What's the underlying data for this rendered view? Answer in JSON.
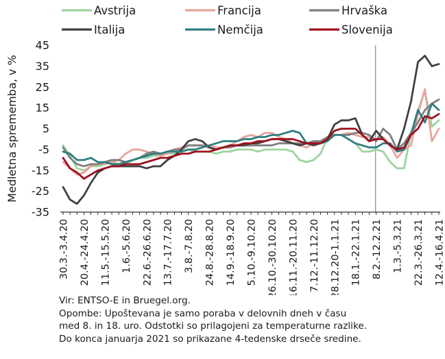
{
  "chart_data": {
    "type": "line",
    "ylabel": "Medletna sprememba, v %",
    "xlabel": "",
    "ylim": [
      -35,
      45
    ],
    "yticks": [
      -35,
      -25,
      -15,
      -5,
      5,
      15,
      25,
      35,
      45
    ],
    "grid": false,
    "legend_position": "top",
    "categories": [
      "30.3.-3.4.20",
      "6.4.-10.4.20",
      "13.4.-17.4.20",
      "20.4.-24.4.20",
      "27.4.-1.5.20",
      "4.5.-8.5.20",
      "11.5.-15.5.20",
      "18.5.-22.5.20",
      "25.5.-29.5.20",
      "1.6.-5.6.20",
      "8.6.-12.6.20",
      "15.6.-19.6.20",
      "22.6.-26.6.20",
      "29.6.-3.7.20",
      "6.7.-10.7.20",
      "13.7.-17.7.20",
      "20.7.-24.7.20",
      "27.7.-31.7.20",
      "3.8.-7.8.20",
      "10.8.-14.8.20",
      "17.8.-21.8.20",
      "24.8.-28.8.20",
      "31.8.-4.9.20",
      "7.9.-11.9.20",
      "14.9.-18.9.20",
      "21.9.-25.9.20",
      "28.9.-2.10.20",
      "5.10.-9.10.20",
      "12.10.-16.10.20",
      "19.10.-23.10.20",
      "26.10.-30.10.20",
      "2.11.-6.11.20",
      "9.11.-13.11.20",
      "16.11.-20.11.20",
      "23.11.-27.11.20",
      "30.11.-4.12.20",
      "7.12.-11.12.20",
      "14.12.-18.12.20",
      "21.12.-25.12.20",
      "28.12.20-1.1.21",
      "4.1.-8.1.21",
      "11.1.-15.1.21",
      "18.1.-22.1.21",
      "25.1.-29.1.21",
      "1.2.-5.2.21",
      "8.2.-12.2.21",
      "15.2.-19.2.21",
      "22.2.-26.2.21",
      "1.3.-5.3.21",
      "8.3.-12.3.21",
      "15.3.-19.3.21",
      "22.3.-26.3.21",
      "29.3.-2.4.21",
      "5.4.-9.4.21",
      "12.4.-16.4.21"
    ],
    "tick_labels": [
      "30.3.-3.4.20",
      "20.4.-24.4.20",
      "11.5.-15.5.20",
      "1.6.-5.6.20",
      "22.6.-26.6.20",
      "13.7.-17.7.20",
      "3.8.-7.8.20",
      "24.8.-28.8.20",
      "14.9.-18.9.20",
      "5.10.-9.10.20",
      "26.10.-30.10.20",
      "16.11.-20.11.20",
      "7.12.-11.12.20",
      "28.12.20-1.1.21",
      "18.1.-22.1.21",
      "8.2.-12.2.21",
      "1.3.-5.3.21",
      "22.3.-26.3.21",
      "12.4.-16.4.21"
    ],
    "tick_label_indices": [
      0,
      3,
      6,
      9,
      12,
      15,
      18,
      21,
      24,
      27,
      30,
      33,
      36,
      39,
      42,
      45,
      48,
      51,
      54
    ],
    "separator_label": "8.2.-12.2.21",
    "series": [
      {
        "name": "Avstrija",
        "color": "#9dd49d",
        "values": [
          -3,
          -8,
          -14,
          -15,
          -13,
          -13,
          -12,
          -11,
          -12,
          -12,
          -10,
          -9,
          -9,
          -8,
          -8,
          -7,
          -7,
          -6,
          -5,
          -6,
          -6,
          -6,
          -7,
          -6,
          -6,
          -5,
          -5,
          -5,
          -6,
          -5,
          -5,
          -5,
          -5,
          -6,
          -10,
          -11,
          -10,
          -7,
          1,
          2,
          2,
          0,
          -2,
          -6,
          -6,
          -5,
          -6,
          -11,
          -14,
          -14,
          3,
          14,
          23,
          6,
          9
        ]
      },
      {
        "name": "Francija",
        "color": "#e6a49c",
        "values": [
          -11,
          -14,
          -17,
          -16,
          -13,
          -12,
          -12,
          -11,
          -10,
          -7,
          -5,
          -5,
          -6,
          -7,
          -8,
          -7,
          -5,
          -4,
          -3,
          -3,
          -3,
          -3,
          -4,
          -4,
          -3,
          -1,
          1,
          2,
          1,
          3,
          3,
          1,
          0,
          -2,
          -3,
          -4,
          -2,
          -1,
          1,
          2,
          2,
          3,
          2,
          1,
          1,
          0,
          1,
          -3,
          -9,
          -5,
          -3,
          12,
          24,
          -1,
          5
        ]
      },
      {
        "name": "Hrvaška",
        "color": "#7f7f7f",
        "values": [
          -4,
          -9,
          -12,
          -13,
          -12,
          -12,
          -11,
          -10,
          -10,
          -11,
          -10,
          -9,
          -7,
          -6,
          -7,
          -6,
          -5,
          -5,
          -3,
          -3,
          -3,
          -4,
          -5,
          -4,
          -4,
          -3,
          -3,
          -3,
          -3,
          -3,
          -3,
          -2,
          -2,
          -2,
          -2,
          -2,
          -1,
          -1,
          1,
          2,
          2,
          2,
          3,
          3,
          2,
          -1,
          5,
          2,
          -5,
          -2,
          3,
          8,
          14,
          17,
          19
        ]
      },
      {
        "name": "Italija",
        "color": "#404040",
        "values": [
          -23,
          -29,
          -31,
          -27,
          -21,
          -16,
          -14,
          -13,
          -13,
          -13,
          -13,
          -13,
          -14,
          -13,
          -13,
          -10,
          -8,
          -5,
          -1,
          0,
          -1,
          -4,
          -5,
          -4,
          -3,
          -3,
          -3,
          -2,
          -2,
          -1,
          0,
          0,
          -1,
          -2,
          -3,
          -2,
          -3,
          -2,
          0,
          7,
          9,
          9,
          10,
          2,
          -1,
          4,
          0,
          -3,
          -5,
          5,
          18,
          37,
          40,
          35,
          36
        ]
      },
      {
        "name": "Nemčija",
        "color": "#2f7e80",
        "values": [
          -6,
          -7,
          -10,
          -10,
          -9,
          -11,
          -11,
          -12,
          -12,
          -11,
          -10,
          -9,
          -8,
          -7,
          -7,
          -6,
          -6,
          -6,
          -5,
          -5,
          -4,
          -3,
          -2,
          -1,
          -1,
          -1,
          0,
          0,
          1,
          1,
          2,
          2,
          3,
          4,
          3,
          -2,
          -2,
          -2,
          -1,
          2,
          2,
          0,
          -2,
          -3,
          -4,
          -4,
          -2,
          -2,
          -6,
          -5,
          2,
          14,
          8,
          17,
          14
        ]
      },
      {
        "name": "Slovenija",
        "color": "#a00f1e",
        "values": [
          -9,
          -14,
          -16,
          -19,
          -17,
          -15,
          -14,
          -13,
          -13,
          -12,
          -12,
          -12,
          -11,
          -10,
          -9,
          -9,
          -8,
          -7,
          -7,
          -6,
          -6,
          -6,
          -5,
          -4,
          -3,
          -3,
          -2,
          -2,
          -1,
          -1,
          0,
          0,
          0,
          0,
          -1,
          -2,
          -2,
          -2,
          0,
          4,
          5,
          5,
          5,
          2,
          -1,
          0,
          0,
          -3,
          -5,
          -4,
          2,
          5,
          11,
          10,
          12
        ]
      }
    ]
  },
  "notes": {
    "source": "Vir: ENTSO-E in Bruegel.org.",
    "note1": "Opombe: Upoštevana je samo poraba v delovnih dneh v času",
    "note2": "med 8. in 18. uro. Odstotki so prilagojeni za temperaturne razlike.",
    "note3": "Do konca januarja 2021 so prikazane 4-tedenske drseče sredine."
  }
}
